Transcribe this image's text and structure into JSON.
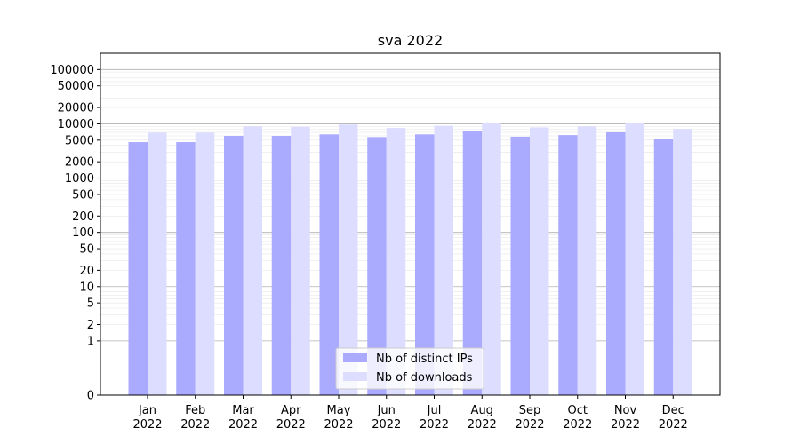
{
  "chart_data": {
    "type": "bar",
    "title": "sva 2022",
    "xlabel": "",
    "ylabel": "",
    "scale": "symlog",
    "ylim": [
      0,
      100000
    ],
    "grid": true,
    "legend_position": "bottom-center",
    "categories": [
      [
        "Jan",
        "2022"
      ],
      [
        "Feb",
        "2022"
      ],
      [
        "Mar",
        "2022"
      ],
      [
        "Apr",
        "2022"
      ],
      [
        "May",
        "2022"
      ],
      [
        "Jun",
        "2022"
      ],
      [
        "Jul",
        "2022"
      ],
      [
        "Aug",
        "2022"
      ],
      [
        "Sep",
        "2022"
      ],
      [
        "Oct",
        "2022"
      ],
      [
        "Nov",
        "2022"
      ],
      [
        "Dec",
        "2022"
      ]
    ],
    "yticks": [
      0,
      1,
      2,
      5,
      10,
      20,
      50,
      100,
      200,
      500,
      1000,
      2000,
      5000,
      10000,
      20000,
      50000,
      100000
    ],
    "series": [
      {
        "name": "Nb of distinct IPs",
        "color": "#aaaaff",
        "values": [
          4600,
          4600,
          6000,
          6000,
          6400,
          5700,
          6400,
          7300,
          5800,
          6200,
          7000,
          5300
        ]
      },
      {
        "name": "Nb of downloads",
        "color": "#ddddff",
        "values": [
          6900,
          6900,
          8900,
          8800,
          9700,
          8400,
          9200,
          10500,
          8600,
          8900,
          10400,
          8100
        ]
      }
    ]
  }
}
